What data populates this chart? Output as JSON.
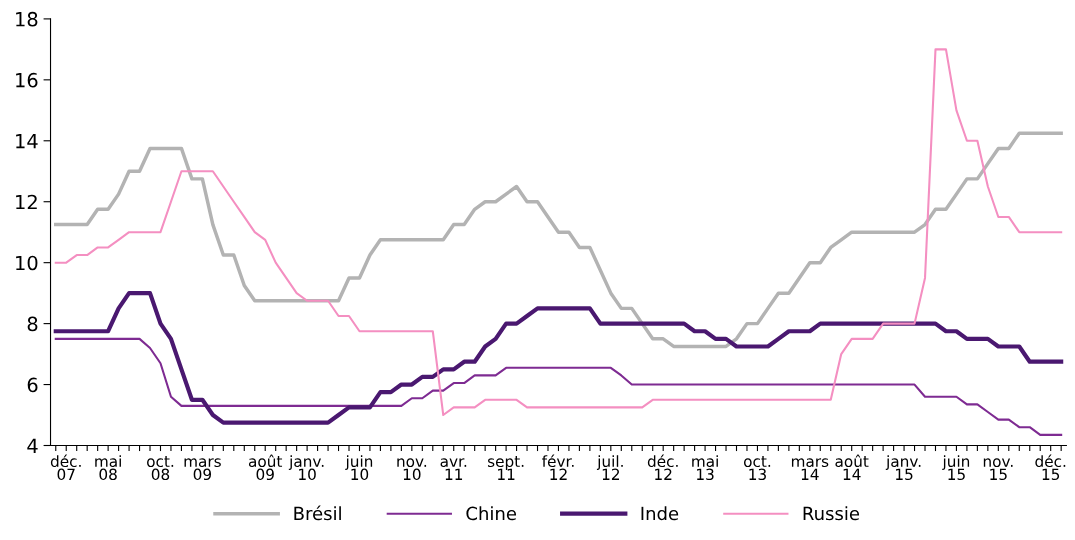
{
  "chart_data": {
    "type": "line",
    "categories": [
      null,
      "déc.\n07",
      null,
      null,
      null,
      "mai\n08",
      null,
      null,
      null,
      null,
      "oct.\n08",
      null,
      null,
      null,
      "mars\n09",
      null,
      null,
      null,
      null,
      null,
      "août\n09",
      null,
      null,
      null,
      "janv.\n10",
      null,
      null,
      null,
      null,
      "juin\n10",
      null,
      null,
      null,
      null,
      "nov.\n10",
      null,
      null,
      null,
      "avr.\n11",
      null,
      null,
      null,
      null,
      "sept.\n11",
      null,
      null,
      null,
      null,
      "févr.\n12",
      null,
      null,
      null,
      null,
      "juil.\n12",
      null,
      null,
      null,
      null,
      "déc.\n12",
      null,
      null,
      null,
      "mai\n13",
      null,
      null,
      null,
      null,
      "oct.\n13",
      null,
      null,
      null,
      null,
      "mars\n14",
      null,
      null,
      null,
      "août\n14",
      null,
      null,
      null,
      null,
      "janv.\n15",
      null,
      null,
      null,
      null,
      "juin\n15",
      null,
      null,
      null,
      "nov.\n15",
      null,
      null,
      null,
      null,
      "déc.\n15",
      null
    ],
    "series": [
      {
        "name": "Brésil",
        "color": "#b3b3b3",
        "values": [
          11.25,
          11.25,
          11.25,
          11.25,
          11.75,
          11.75,
          12.25,
          13,
          13,
          13.75,
          13.75,
          13.75,
          13.75,
          12.75,
          12.75,
          11.25,
          10.25,
          10.25,
          9.25,
          8.75,
          8.75,
          8.75,
          8.75,
          8.75,
          8.75,
          8.75,
          8.75,
          8.75,
          9.5,
          9.5,
          10.25,
          10.75,
          10.75,
          10.75,
          10.75,
          10.75,
          10.75,
          10.75,
          11.25,
          11.25,
          11.75,
          12,
          12,
          12.25,
          12.5,
          12,
          12,
          11.5,
          11,
          11,
          10.5,
          10.5,
          9.75,
          9,
          8.5,
          8.5,
          8,
          7.5,
          7.5,
          7.25,
          7.25,
          7.25,
          7.25,
          7.25,
          7.25,
          7.5,
          8,
          8,
          8.5,
          9,
          9,
          9.5,
          10,
          10,
          10.5,
          10.75,
          11,
          11,
          11,
          11,
          11,
          11,
          11,
          11.25,
          11.75,
          11.75,
          12.25,
          12.75,
          12.75,
          13.25,
          13.75,
          13.75,
          14.25,
          14.25,
          14.25,
          14.25,
          14.25
        ]
      },
      {
        "name": "Chine",
        "color": "#7e2b92",
        "values": [
          7.5,
          7.5,
          7.5,
          7.5,
          7.5,
          7.5,
          7.5,
          7.5,
          7.5,
          7.2,
          6.7,
          5.6,
          5.3,
          5.3,
          5.3,
          5.3,
          5.3,
          5.3,
          5.3,
          5.3,
          5.3,
          5.3,
          5.3,
          5.3,
          5.3,
          5.3,
          5.3,
          5.3,
          5.3,
          5.3,
          5.3,
          5.3,
          5.3,
          5.3,
          5.55,
          5.55,
          5.8,
          5.8,
          6.05,
          6.05,
          6.3,
          6.3,
          6.3,
          6.55,
          6.55,
          6.55,
          6.55,
          6.55,
          6.55,
          6.55,
          6.55,
          6.55,
          6.55,
          6.55,
          6.3,
          6,
          6,
          6,
          6,
          6,
          6,
          6,
          6,
          6,
          6,
          6,
          6,
          6,
          6,
          6,
          6,
          6,
          6,
          6,
          6,
          6,
          6,
          6,
          6,
          6,
          6,
          6,
          6,
          5.6,
          5.6,
          5.6,
          5.6,
          5.35,
          5.35,
          5.1,
          4.85,
          4.85,
          4.6,
          4.6,
          4.35,
          4.35,
          4.35
        ]
      },
      {
        "name": "Inde",
        "color": "#4a1870",
        "values": [
          7.75,
          7.75,
          7.75,
          7.75,
          7.75,
          7.75,
          8.5,
          9,
          9,
          9,
          8,
          7.5,
          6.5,
          5.5,
          5.5,
          5,
          4.75,
          4.75,
          4.75,
          4.75,
          4.75,
          4.75,
          4.75,
          4.75,
          4.75,
          4.75,
          4.75,
          5,
          5.25,
          5.25,
          5.25,
          5.75,
          5.75,
          6,
          6,
          6.25,
          6.25,
          6.5,
          6.5,
          6.75,
          6.75,
          7.25,
          7.5,
          8,
          8,
          8.25,
          8.5,
          8.5,
          8.5,
          8.5,
          8.5,
          8.5,
          8,
          8,
          8,
          8,
          8,
          8,
          8,
          8,
          8,
          7.75,
          7.75,
          7.5,
          7.5,
          7.25,
          7.25,
          7.25,
          7.25,
          7.5,
          7.75,
          7.75,
          7.75,
          8,
          8,
          8,
          8,
          8,
          8,
          8,
          8,
          8,
          8,
          8,
          8,
          7.75,
          7.75,
          7.5,
          7.5,
          7.5,
          7.25,
          7.25,
          7.25,
          6.75,
          6.75,
          6.75,
          6.75
        ]
      },
      {
        "name": "Russie",
        "color": "#f48fc1",
        "values": [
          10,
          10,
          10.25,
          10.25,
          10.5,
          10.5,
          10.75,
          11,
          11,
          11,
          11,
          12,
          13,
          13,
          13,
          13,
          12.5,
          12,
          11.5,
          11,
          10.75,
          10,
          9.5,
          9,
          8.75,
          8.75,
          8.75,
          8.25,
          8.25,
          7.75,
          7.75,
          7.75,
          7.75,
          7.75,
          7.75,
          7.75,
          7.75,
          5,
          5.25,
          5.25,
          5.25,
          5.5,
          5.5,
          5.5,
          5.5,
          5.25,
          5.25,
          5.25,
          5.25,
          5.25,
          5.25,
          5.25,
          5.25,
          5.25,
          5.25,
          5.25,
          5.25,
          5.5,
          5.5,
          5.5,
          5.5,
          5.5,
          5.5,
          5.5,
          5.5,
          5.5,
          5.5,
          5.5,
          5.5,
          5.5,
          5.5,
          5.5,
          5.5,
          5.5,
          5.5,
          7,
          7.5,
          7.5,
          7.5,
          8,
          8,
          8,
          8,
          9.5,
          17,
          17,
          15,
          14,
          14,
          12.5,
          11.5,
          11.5,
          11,
          11,
          11,
          11,
          11
        ]
      }
    ],
    "ylim": [
      4,
      18
    ],
    "yticks": [
      4,
      6,
      8,
      10,
      12,
      14,
      16,
      18
    ],
    "grid": false,
    "legend": "bottom",
    "marker": "none",
    "line_style": "solid"
  }
}
